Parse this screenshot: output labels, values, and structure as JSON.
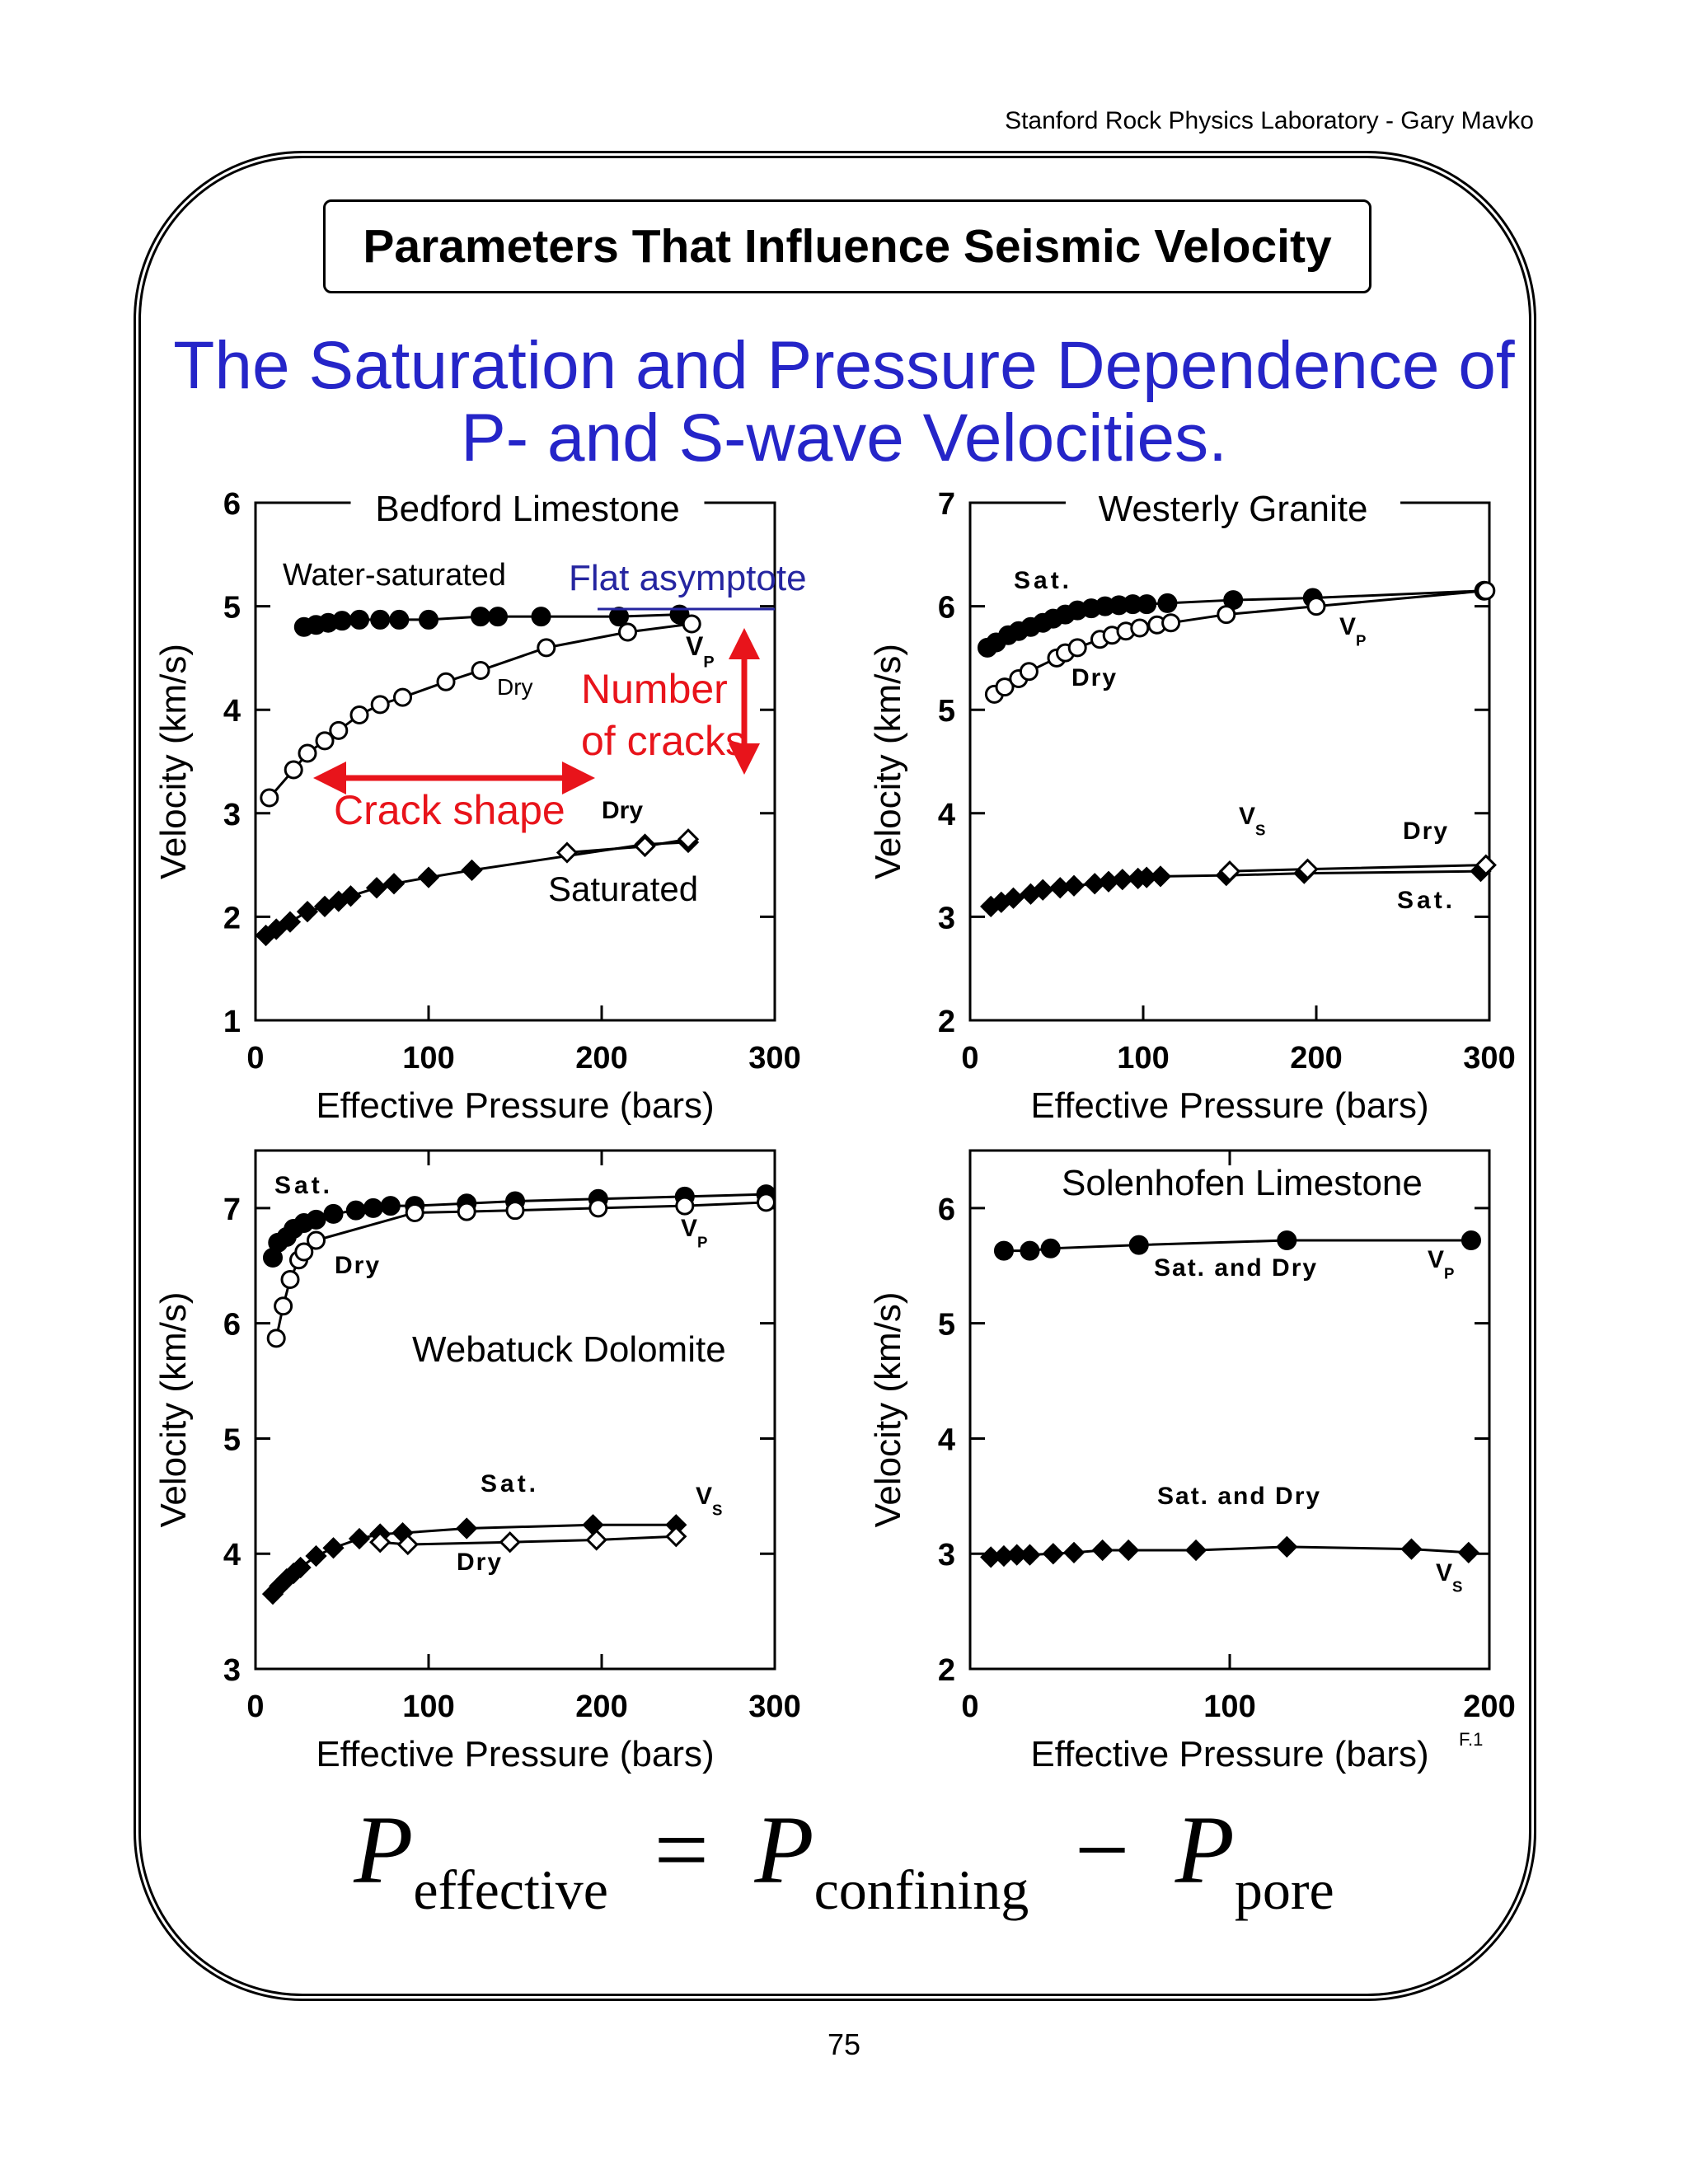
{
  "header": {
    "credit": "Stanford Rock Physics Laboratory - Gary Mavko"
  },
  "title": "Parameters That Influence Seismic Velocity",
  "subtitle": [
    "The Saturation and Pressure Dependence of",
    "P- and S-wave Velocities."
  ],
  "formula": {
    "lhs": "P",
    "lhs_sub": "effective",
    "eq": "=",
    "a": "P",
    "a_sub": "confining",
    "minus": "−",
    "b": "P",
    "b_sub": "pore"
  },
  "page_number": "75",
  "figure_code": "F.1",
  "colors": {
    "annotation_red": "#e8141b",
    "annotation_blue": "#2525a0",
    "title_blue": "#2525c8"
  },
  "chart_data": [
    {
      "type": "scatter",
      "title": "Bedford Limestone",
      "xlabel": "Effective Pressure (bars)",
      "ylabel": "Velocity (km/s)",
      "xlim": [
        0,
        300
      ],
      "ylim": [
        1,
        6
      ],
      "xticks": [
        0,
        100,
        200,
        300
      ],
      "yticks": [
        1,
        2,
        3,
        4,
        5,
        6
      ],
      "series": [
        {
          "marker": "filled-circle",
          "x": [
            28,
            35,
            42,
            50,
            60,
            72,
            83,
            100,
            130,
            140,
            165,
            210,
            245
          ],
          "y": [
            4.8,
            4.82,
            4.84,
            4.86,
            4.87,
            4.87,
            4.87,
            4.87,
            4.9,
            4.9,
            4.9,
            4.9,
            4.92
          ]
        },
        {
          "marker": "open-circle",
          "x": [
            8,
            22,
            30,
            40,
            48,
            60,
            72,
            85,
            110,
            130,
            168,
            215,
            252
          ],
          "y": [
            3.15,
            3.42,
            3.58,
            3.7,
            3.8,
            3.95,
            4.05,
            4.12,
            4.27,
            4.38,
            4.6,
            4.75,
            4.83
          ]
        },
        {
          "marker": "filled-diamond",
          "x": [
            6,
            12,
            20,
            30,
            40,
            48,
            55,
            70,
            80,
            100,
            125,
            225,
            250
          ],
          "y": [
            1.82,
            1.88,
            1.95,
            2.05,
            2.1,
            2.15,
            2.2,
            2.28,
            2.32,
            2.38,
            2.45,
            2.7,
            2.72
          ]
        },
        {
          "marker": "open-diamond",
          "x": [
            180,
            225,
            250
          ],
          "y": [
            2.62,
            2.68,
            2.75
          ]
        }
      ],
      "labels": {
        "water_saturated": "Water-saturated",
        "dry_p": "Dry",
        "vp": "V",
        "vp_sub": "P",
        "dry_s": "Dry",
        "saturated": "Saturated"
      },
      "annotations": {
        "flat_asymptote": "Flat asymptote",
        "number_of_cracks": [
          "Number",
          "of cracks"
        ],
        "crack_shape": "Crack shape"
      }
    },
    {
      "type": "scatter",
      "title": "Westerly Granite",
      "xlabel": "Effective Pressure (bars)",
      "ylabel": "Velocity (km/s)",
      "xlim": [
        0,
        300
      ],
      "ylim": [
        2,
        7
      ],
      "xticks": [
        0,
        100,
        200,
        300
      ],
      "yticks": [
        2,
        3,
        4,
        5,
        6,
        7
      ],
      "series": [
        {
          "marker": "filled-circle",
          "x": [
            10,
            15,
            22,
            28,
            35,
            42,
            48,
            55,
            62,
            70,
            78,
            86,
            94,
            102,
            114,
            152,
            198,
            297
          ],
          "y": [
            5.6,
            5.65,
            5.72,
            5.76,
            5.8,
            5.84,
            5.88,
            5.92,
            5.96,
            5.98,
            6.0,
            6.01,
            6.02,
            6.02,
            6.03,
            6.06,
            6.08,
            6.15
          ]
        },
        {
          "marker": "open-circle",
          "x": [
            14,
            20,
            28,
            34,
            50,
            55,
            62,
            75,
            82,
            90,
            98,
            108,
            116,
            148,
            200,
            298
          ],
          "y": [
            5.15,
            5.22,
            5.3,
            5.37,
            5.5,
            5.55,
            5.6,
            5.68,
            5.72,
            5.76,
            5.79,
            5.82,
            5.84,
            5.92,
            6.0,
            6.15
          ]
        },
        {
          "marker": "filled-diamond",
          "x": [
            12,
            18,
            25,
            35,
            42,
            52,
            60,
            72,
            80,
            88,
            97,
            102,
            110,
            148,
            193,
            295
          ],
          "y": [
            3.1,
            3.14,
            3.18,
            3.22,
            3.26,
            3.28,
            3.3,
            3.32,
            3.34,
            3.36,
            3.37,
            3.38,
            3.39,
            3.4,
            3.42,
            3.44
          ]
        },
        {
          "marker": "open-diamond",
          "x": [
            150,
            195,
            298
          ],
          "y": [
            3.44,
            3.46,
            3.5
          ]
        }
      ],
      "labels": {
        "sat_p": "Sat.",
        "dry_p": "Dry",
        "vp": "V",
        "vp_sub": "P",
        "vs": "V",
        "vs_sub": "S",
        "dry_s": "Dry",
        "sat_s": "Sat."
      }
    },
    {
      "type": "scatter",
      "title": "Webatuck Dolomite",
      "xlabel": "Effective Pressure (bars)",
      "ylabel": "Velocity (km/s)",
      "xlim": [
        0,
        300
      ],
      "ylim": [
        3,
        7.5
      ],
      "xticks": [
        0,
        100,
        200,
        300
      ],
      "yticks": [
        3,
        4,
        5,
        6,
        7
      ],
      "series": [
        {
          "marker": "filled-circle",
          "x": [
            10,
            13,
            18,
            22,
            28,
            35,
            45,
            58,
            68,
            78,
            92,
            122,
            150,
            198,
            248,
            295
          ],
          "y": [
            6.57,
            6.7,
            6.75,
            6.82,
            6.87,
            6.9,
            6.95,
            6.98,
            7.0,
            7.02,
            7.02,
            7.04,
            7.06,
            7.08,
            7.1,
            7.12
          ]
        },
        {
          "marker": "open-circle",
          "x": [
            12,
            16,
            20,
            25,
            28,
            35,
            92,
            122,
            150,
            198,
            248,
            295
          ],
          "y": [
            5.87,
            6.15,
            6.38,
            6.55,
            6.62,
            6.72,
            6.96,
            6.97,
            6.98,
            7.0,
            7.02,
            7.05
          ]
        },
        {
          "marker": "filled-diamond",
          "x": [
            10,
            14,
            18,
            22,
            26,
            35,
            45,
            60,
            72,
            85,
            122,
            195,
            243
          ],
          "y": [
            3.65,
            3.72,
            3.78,
            3.83,
            3.88,
            3.98,
            4.05,
            4.13,
            4.17,
            4.18,
            4.22,
            4.25,
            4.25
          ]
        },
        {
          "marker": "open-diamond",
          "x": [
            72,
            88,
            147,
            197,
            243
          ],
          "y": [
            4.1,
            4.08,
            4.1,
            4.12,
            4.15
          ]
        }
      ],
      "labels": {
        "sat_p": "Sat.",
        "dry_p": "Dry",
        "vp": "V",
        "vp_sub": "P",
        "sat_s": "Sat.",
        "vs": "V",
        "vs_sub": "S",
        "dry_s": "Dry"
      }
    },
    {
      "type": "scatter",
      "title": "Solenhofen Limestone",
      "xlabel": "Effective Pressure (bars)",
      "ylabel": "Velocity (km/s)",
      "xlim": [
        0,
        200
      ],
      "ylim": [
        2,
        6.5
      ],
      "xticks": [
        0,
        100,
        200
      ],
      "yticks": [
        2,
        3,
        4,
        5,
        6
      ],
      "series": [
        {
          "marker": "filled-circle",
          "x": [
            13,
            23,
            31,
            65,
            122,
            193
          ],
          "y": [
            5.63,
            5.63,
            5.65,
            5.68,
            5.72,
            5.72
          ]
        },
        {
          "marker": "filled-diamond",
          "x": [
            8,
            13,
            18,
            23,
            32,
            40,
            51,
            61,
            87,
            122,
            170,
            192
          ],
          "y": [
            2.97,
            2.98,
            2.99,
            2.99,
            3.0,
            3.01,
            3.03,
            3.03,
            3.03,
            3.06,
            3.04,
            3.01
          ]
        }
      ],
      "labels": {
        "sat_dry_p": "Sat.  and  Dry",
        "vp": "V",
        "vp_sub": "P",
        "sat_dry_s": "Sat.  and  Dry",
        "vs": "V",
        "vs_sub": "S"
      }
    }
  ]
}
